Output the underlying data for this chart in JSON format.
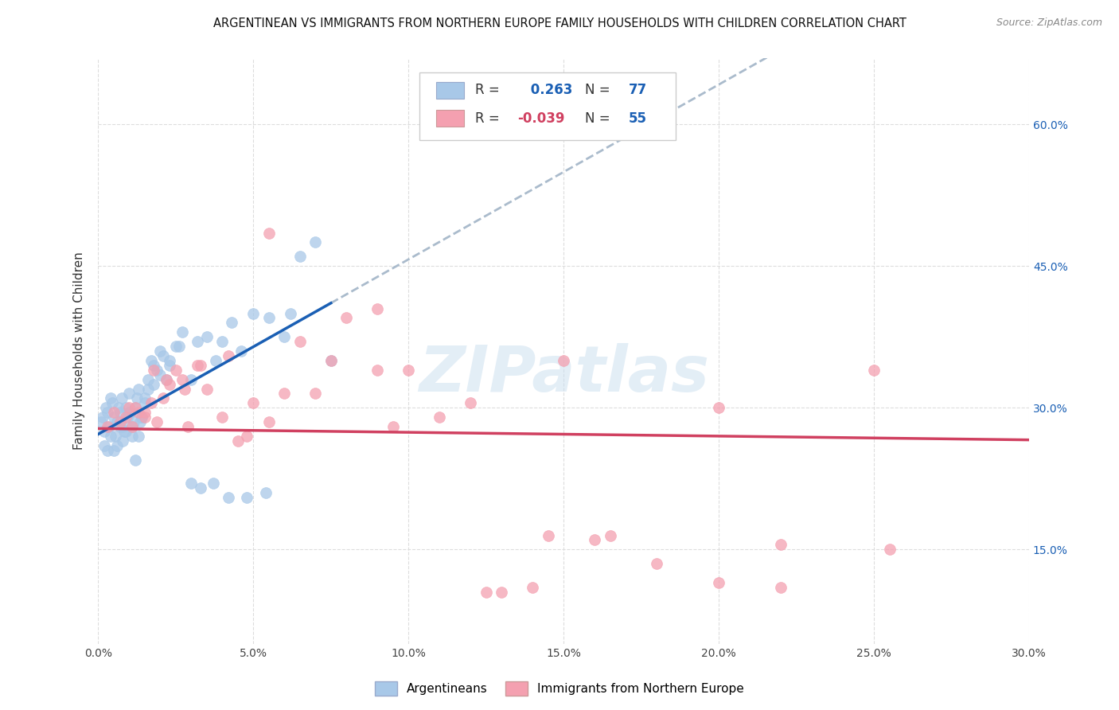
{
  "title": "ARGENTINEAN VS IMMIGRANTS FROM NORTHERN EUROPE FAMILY HOUSEHOLDS WITH CHILDREN CORRELATION CHART",
  "source": "Source: ZipAtlas.com",
  "ylabel": "Family Households with Children",
  "x_tick_labels": [
    "0.0%",
    "5.0%",
    "10.0%",
    "15.0%",
    "20.0%",
    "25.0%",
    "30.0%"
  ],
  "x_tick_values": [
    0.0,
    5.0,
    10.0,
    15.0,
    20.0,
    25.0,
    30.0
  ],
  "y_tick_labels": [
    "15.0%",
    "30.0%",
    "45.0%",
    "60.0%"
  ],
  "y_tick_values": [
    15.0,
    30.0,
    45.0,
    60.0
  ],
  "xlim": [
    0.0,
    30.0
  ],
  "ylim": [
    5.0,
    67.0
  ],
  "legend_label_blue": "Argentineans",
  "legend_label_pink": "Immigrants from Northern Europe",
  "R_blue": 0.263,
  "N_blue": 77,
  "R_pink": -0.039,
  "N_pink": 55,
  "blue_color": "#a8c8e8",
  "pink_color": "#f4a0b0",
  "blue_line_color": "#1a5fb4",
  "pink_line_color": "#d04060",
  "gray_dash_color": "#aabbcc",
  "background_color": "#ffffff",
  "grid_color": "#dddddd",
  "blue_scatter_x": [
    0.1,
    0.15,
    0.2,
    0.25,
    0.3,
    0.35,
    0.4,
    0.45,
    0.5,
    0.55,
    0.6,
    0.65,
    0.7,
    0.75,
    0.8,
    0.85,
    0.9,
    0.95,
    1.0,
    1.05,
    1.1,
    1.15,
    1.2,
    1.25,
    1.3,
    1.35,
    1.4,
    1.5,
    1.6,
    1.7,
    1.8,
    1.9,
    2.0,
    2.1,
    2.2,
    2.3,
    2.5,
    2.7,
    3.0,
    3.2,
    3.5,
    3.8,
    4.0,
    4.3,
    4.6,
    5.0,
    5.5,
    6.0,
    6.5,
    7.0,
    7.5,
    0.2,
    0.3,
    0.4,
    0.5,
    0.6,
    0.7,
    0.8,
    0.9,
    1.0,
    1.1,
    1.2,
    1.3,
    1.4,
    1.5,
    1.6,
    1.8,
    2.0,
    2.3,
    2.6,
    3.0,
    3.3,
    3.7,
    4.2,
    4.8,
    5.4,
    6.2
  ],
  "blue_scatter_y": [
    28.5,
    29.0,
    27.5,
    30.0,
    29.5,
    28.0,
    31.0,
    30.5,
    29.0,
    27.0,
    28.5,
    30.0,
    29.5,
    31.0,
    28.0,
    27.5,
    30.0,
    29.0,
    31.5,
    29.5,
    27.0,
    28.5,
    30.0,
    31.0,
    32.0,
    28.5,
    29.0,
    31.0,
    33.0,
    35.0,
    32.5,
    34.0,
    36.0,
    35.5,
    33.0,
    34.5,
    36.5,
    38.0,
    33.0,
    37.0,
    37.5,
    35.0,
    37.0,
    39.0,
    36.0,
    40.0,
    39.5,
    37.5,
    46.0,
    47.5,
    35.0,
    26.0,
    25.5,
    27.0,
    25.5,
    26.0,
    28.0,
    26.5,
    27.5,
    29.5,
    28.0,
    24.5,
    27.0,
    29.0,
    30.5,
    32.0,
    34.5,
    33.5,
    35.0,
    36.5,
    22.0,
    21.5,
    22.0,
    20.5,
    20.5,
    21.0,
    40.0
  ],
  "pink_scatter_x": [
    0.3,
    0.5,
    0.7,
    0.9,
    1.1,
    1.3,
    1.5,
    1.7,
    1.9,
    2.1,
    2.3,
    2.5,
    2.7,
    2.9,
    3.2,
    3.5,
    4.0,
    4.5,
    5.0,
    5.5,
    6.0,
    7.0,
    8.0,
    9.0,
    10.0,
    11.0,
    12.0,
    13.0,
    14.0,
    15.0,
    16.5,
    18.0,
    20.0,
    22.0,
    25.0,
    1.0,
    1.2,
    1.5,
    1.8,
    2.2,
    2.8,
    3.3,
    4.2,
    5.5,
    7.5,
    9.5,
    12.5,
    14.5,
    9.0,
    16.0,
    20.0,
    22.0,
    25.5,
    6.5,
    4.8
  ],
  "pink_scatter_y": [
    28.0,
    29.5,
    28.5,
    29.0,
    28.0,
    29.5,
    29.0,
    30.5,
    28.5,
    31.0,
    32.5,
    34.0,
    33.0,
    28.0,
    34.5,
    32.0,
    29.0,
    26.5,
    30.5,
    28.5,
    31.5,
    31.5,
    39.5,
    34.0,
    34.0,
    29.0,
    30.5,
    10.5,
    11.0,
    35.0,
    16.5,
    13.5,
    11.5,
    11.0,
    34.0,
    30.0,
    30.0,
    29.5,
    34.0,
    33.0,
    32.0,
    34.5,
    35.5,
    48.5,
    35.0,
    28.0,
    10.5,
    16.5,
    40.5,
    16.0,
    30.0,
    15.5,
    15.0,
    37.0,
    27.0
  ],
  "blue_line_start_x": 0.0,
  "blue_line_end_x": 7.5,
  "blue_dash_start_x": 7.5,
  "blue_dash_end_x": 30.0,
  "pink_line_start_x": 0.0,
  "pink_line_end_x": 30.0,
  "blue_trend_slope": 1.85,
  "blue_trend_intercept": 27.2,
  "pink_trend_slope": -0.04,
  "pink_trend_intercept": 27.8
}
